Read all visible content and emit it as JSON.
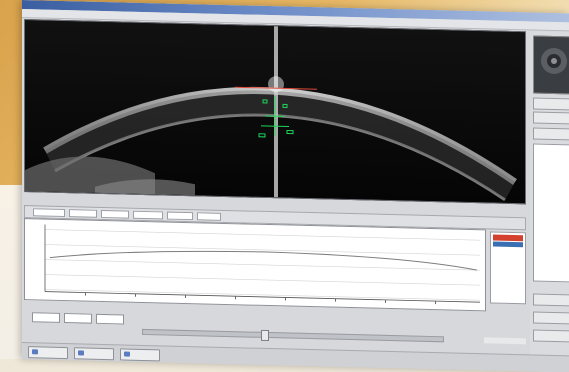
{
  "window": {
    "title": "",
    "menu": ""
  },
  "scan": {
    "overlay_color": "#1fd65a",
    "cornea_color": "#d9d9d9",
    "scan_line_color": "#cfcfcf"
  },
  "graph": {
    "plot_line_color": "#7d7d7d",
    "axis_title": "",
    "x_title": ""
  },
  "legend": {
    "swatch_top": "#d3402e",
    "swatch_bottom": "#3b6fb3"
  },
  "statusbar": {
    "buttons": [
      {
        "icon": "save-icon"
      },
      {
        "icon": "print-icon"
      },
      {
        "icon": "export-icon"
      }
    ]
  }
}
